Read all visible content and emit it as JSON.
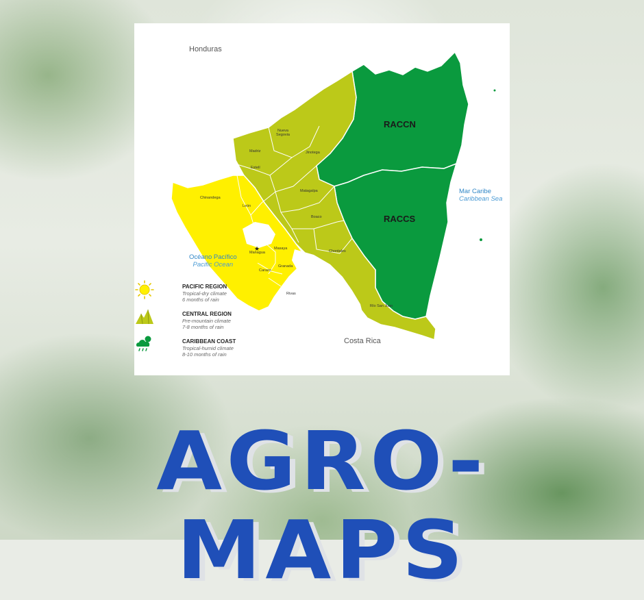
{
  "map": {
    "countries": {
      "north": "Honduras",
      "south": "Costa Rica"
    },
    "seas": {
      "caribbean_es": "Mar Caribe",
      "caribbean_en": "Caribbean Sea",
      "pacific_es": "Océano Pacífico",
      "pacific_en": "Pacific Ocean"
    },
    "regions": {
      "north": "RACCN",
      "south": "RACCS"
    },
    "departments": {
      "nueva_segovia": "Nueva Segovia",
      "jinotega": "Jinotega",
      "madriz": "Madriz",
      "esteli": "Estelí",
      "chinandega": "Chinandega",
      "leon": "León",
      "matagalpa": "Matagalpa",
      "boaco": "Boaco",
      "managua": "Managua",
      "masaya": "Masaya",
      "granada": "Granada",
      "carazo": "Carazo",
      "rivas": "Rivas",
      "chontales": "Chontales",
      "rio_san_juan": "Río San Juan"
    },
    "colors": {
      "pacific": "#fff000",
      "central": "#bcc919",
      "caribbean": "#0a9a3e",
      "water": "#ffffff"
    }
  },
  "legend": [
    {
      "icon": "sun-icon",
      "title": "PACIFIC REGION",
      "line1": "Tropical-dry climate",
      "line2": "6 months of rain"
    },
    {
      "icon": "mountain-icon",
      "title": "CENTRAL REGION",
      "line1": "Pre-mountain climate",
      "line2": "7-8 months of rain"
    },
    {
      "icon": "rain-cloud-icon",
      "title": "CARIBBEAN COAST",
      "line1": "Tropical-humid climate",
      "line2": "8-10 months of rain"
    }
  ],
  "logo": {
    "text": "AGRO-MAPS",
    "color": "#1f4fb8"
  }
}
